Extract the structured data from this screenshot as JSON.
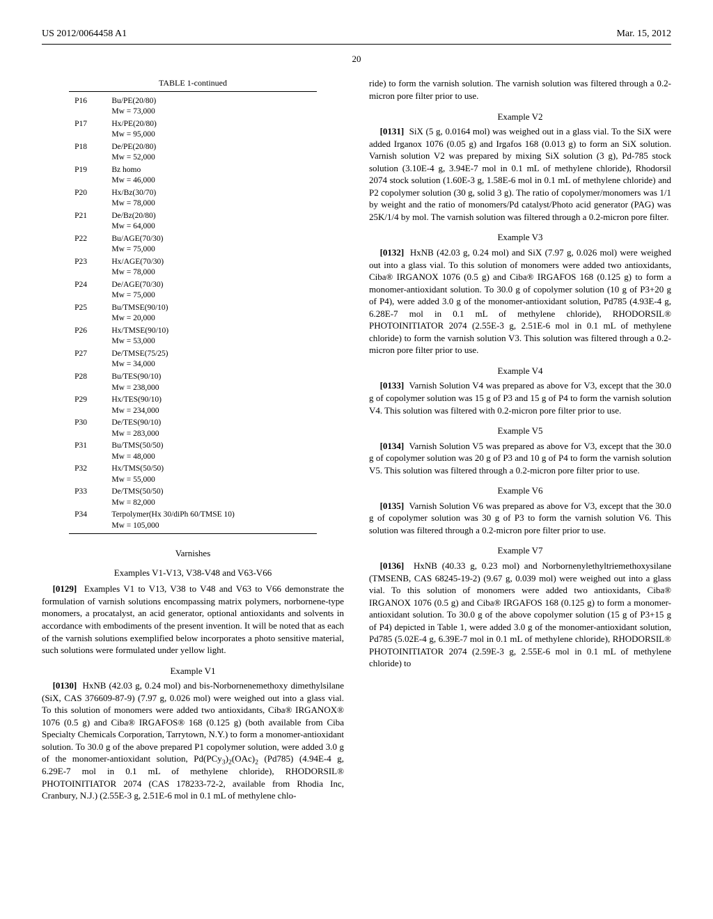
{
  "header": {
    "pub_no": "US 2012/0064458 A1",
    "date": "Mar. 15, 2012"
  },
  "pagenum": "20",
  "table": {
    "caption": "TABLE 1-continued",
    "rows": [
      {
        "id": "P16",
        "l1": "Bu/PE(20/80)",
        "l2": "Mw = 73,000"
      },
      {
        "id": "P17",
        "l1": "Hx/PE(20/80)",
        "l2": "Mw = 95,000"
      },
      {
        "id": "P18",
        "l1": "De/PE(20/80)",
        "l2": "Mw = 52,000"
      },
      {
        "id": "P19",
        "l1": "Bz homo",
        "l2": "Mw = 46,000"
      },
      {
        "id": "P20",
        "l1": "Hx/Bz(30/70)",
        "l2": "Mw = 78,000"
      },
      {
        "id": "P21",
        "l1": "De/Bz(20/80)",
        "l2": "Mw = 64,000"
      },
      {
        "id": "P22",
        "l1": "Bu/AGE(70/30)",
        "l2": "Mw = 75,000"
      },
      {
        "id": "P23",
        "l1": "Hx/AGE(70/30)",
        "l2": "Mw = 78,000"
      },
      {
        "id": "P24",
        "l1": "De/AGE(70/30)",
        "l2": "Mw = 75,000"
      },
      {
        "id": "P25",
        "l1": "Bu/TMSE(90/10)",
        "l2": "Mw = 20,000"
      },
      {
        "id": "P26",
        "l1": "Hx/TMSE(90/10)",
        "l2": "Mw = 53,000"
      },
      {
        "id": "P27",
        "l1": "De/TMSE(75/25)",
        "l2": "Mw = 34,000"
      },
      {
        "id": "P28",
        "l1": "Bu/TES(90/10)",
        "l2": "Mw = 238,000"
      },
      {
        "id": "P29",
        "l1": "Hx/TES(90/10)",
        "l2": "Mw = 234,000"
      },
      {
        "id": "P30",
        "l1": "De/TES(90/10)",
        "l2": "Mw = 283,000"
      },
      {
        "id": "P31",
        "l1": "Bu/TMS(50/50)",
        "l2": "Mw = 48,000"
      },
      {
        "id": "P32",
        "l1": "Hx/TMS(50/50)",
        "l2": "Mw = 55,000"
      },
      {
        "id": "P33",
        "l1": "De/TMS(50/50)",
        "l2": "Mw = 82,000"
      },
      {
        "id": "P34",
        "l1": "Terpolymer(Hx 30/diPh 60/TMSE 10)",
        "l2": "Mw = 105,000"
      }
    ]
  },
  "col1": {
    "varnishes": "Varnishes",
    "exrange": "Examples V1-V13, V38-V48 and V63-V66",
    "p0129_num": "[0129]",
    "p0129": "Examples V1 to V13, V38 to V48 and V63 to V66 demonstrate the formulation of varnish solutions encompassing matrix polymers, norbornene-type monomers, a procatalyst, an acid generator, optional antioxidants and solvents in accordance with embodiments of the present invention. It will be noted that as each of the varnish solutions exemplified below incorporates a photo sensitive material, such solutions were formulated under yellow light.",
    "ex_v1": "Example V1",
    "p0130_num": "[0130]",
    "p0130_a": "HxNB (42.03 g, 0.24 mol) and bis-Norbornenemethoxy dimethylsilane (SiX, CAS 376609-87-9) (7.97 g, 0.026 mol) were weighed out into a glass vial. To this solution of monomers were added two antioxidants, Ciba® IRGANOX® 1076 (0.5 g) and Ciba® IRGAFOS® 168 (0.125 g) (both available from Ciba Specialty Chemicals Corporation, Tarrytown, N.Y.) to form a monomer-antioxidant solution. To 30.0 g of the above prepared P1 copolymer solution, were added 3.0 g of the monomer-antioxidant solution, Pd(PCy",
    "p0130_sub1": "3",
    "p0130_b": ")",
    "p0130_sub2": "2",
    "p0130_c": "(OAc)",
    "p0130_sub3": "2",
    "p0130_d": " (Pd785) (4.94E-4 g, 6.29E-7 mol in 0.1 mL of methylene chloride), RHODORSIL® PHOTOINITIATOR 2074 (CAS 178233-72-2, available from Rhodia Inc, Cranbury, N.J.) (2.55E-3 g, 2.51E-6 mol in 0.1 mL of methylene chlo-"
  },
  "col2": {
    "carry": "ride) to form the varnish solution. The varnish solution was filtered through a 0.2-micron pore filter prior to use.",
    "ex_v2": "Example V2",
    "p0131_num": "[0131]",
    "p0131": "SiX (5 g, 0.0164 mol) was weighed out in a glass vial. To the SiX were added Irganox 1076 (0.05 g) and Irgafos 168 (0.013 g) to form an SiX solution. Varnish solution V2 was prepared by mixing SiX solution (3 g), Pd-785 stock solution (3.10E-4 g, 3.94E-7 mol in 0.1 mL of methylene chloride), Rhodorsil 2074 stock solution (1.60E-3 g, 1.58E-6 mol in 0.1 mL of methylene chloride) and P2 copolymer solution (30 g, solid 3 g). The ratio of copolymer/monomers was 1/1 by weight and the ratio of monomers/Pd catalyst/Photo acid generator (PAG) was 25K/1/4 by mol. The varnish solution was filtered through a 0.2-micron pore filter.",
    "ex_v3": "Example V3",
    "p0132_num": "[0132]",
    "p0132": "HxNB (42.03 g, 0.24 mol) and SiX (7.97 g, 0.026 mol) were weighed out into a glass vial. To this solution of monomers were added two antioxidants, Ciba® IRGANOX 1076 (0.5 g) and Ciba® IRGAFOS 168 (0.125 g) to form a monomer-antioxidant solution. To 30.0 g of copolymer solution (10 g of P3+20 g of P4), were added 3.0 g of the monomer-antioxidant solution, Pd785 (4.93E-4 g, 6.28E-7 mol in 0.1 mL of methylene chloride), RHODORSIL® PHOTOINITIATOR 2074 (2.55E-3 g, 2.51E-6 mol in 0.1 mL of methylene chloride) to form the varnish solution V3. This solution was filtered through a 0.2-micron pore filter prior to use.",
    "ex_v4": "Example V4",
    "p0133_num": "[0133]",
    "p0133": "Varnish Solution V4 was prepared as above for V3, except that the 30.0 g of copolymer solution was 15 g of P3 and 15 g of P4 to form the varnish solution V4. This solution was filtered with 0.2-micron pore filter prior to use.",
    "ex_v5": "Example V5",
    "p0134_num": "[0134]",
    "p0134": "Varnish Solution V5 was prepared as above for V3, except that the 30.0 g of copolymer solution was 20 g of P3 and 10 g of P4 to form the varnish solution V5. This solution was filtered through a 0.2-micron pore filter prior to use.",
    "ex_v6": "Example V6",
    "p0135_num": "[0135]",
    "p0135": "Varnish Solution V6 was prepared as above for V3, except that the 30.0 g of copolymer solution was 30 g of P3 to form the varnish solution V6. This solution was filtered through a 0.2-micron pore filter prior to use.",
    "ex_v7": "Example V7",
    "p0136_num": "[0136]",
    "p0136": "HxNB (40.33 g, 0.23 mol) and Norbornenylethyltriemethoxysilane (TMSENB, CAS 68245-19-2) (9.67 g, 0.039 mol) were weighed out into a glass vial. To this solution of monomers were added two antioxidants, Ciba® IRGANOX 1076 (0.5 g) and Ciba® IRGAFOS 168 (0.125 g) to form a monomer-antioxidant solution. To 30.0 g of the above copolymer solution (15 g of P3+15 g of P4) depicted in Table 1, were added 3.0 g of the monomer-antioxidant solution, Pd785 (5.02E-4 g, 6.39E-7 mol in 0.1 mL of methylene chloride), RHODORSIL® PHOTOINITIATOR 2074 (2.59E-3 g, 2.55E-6 mol in 0.1 mL of methylene chloride) to"
  }
}
